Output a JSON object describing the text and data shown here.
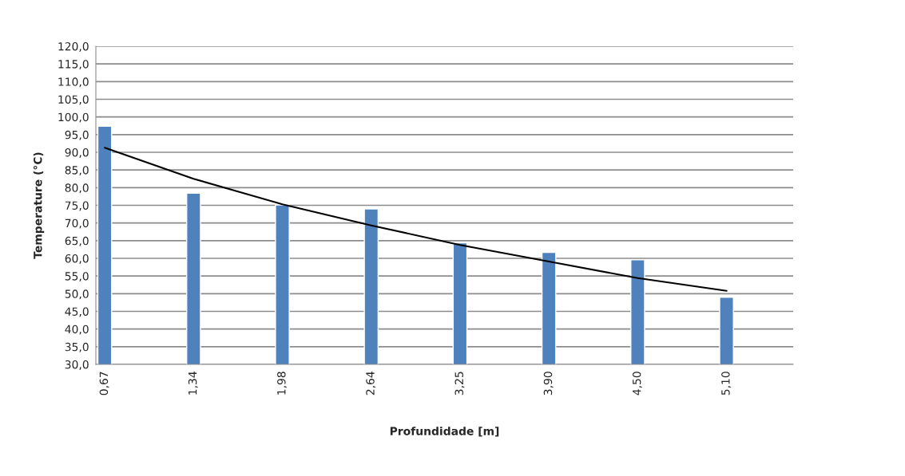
{
  "chart_data": {
    "type": "bar",
    "xlabel": "Profundidade [m]",
    "ylabel": "Temperature (°C)",
    "categories": [
      "0,67",
      "1,34",
      "1,98",
      "2,64",
      "3,25",
      "3,90",
      "4,50",
      "5,10"
    ],
    "series": [
      {
        "color": "#4f81bd",
        "values": [
          97.4,
          78.4,
          75.1,
          74.0,
          64.4,
          61.7,
          59.6,
          49.0
        ]
      },
      {
        "type": "line",
        "color": "#000000",
        "values": [
          91.3,
          82.5,
          75.3,
          69.3,
          63.8,
          59.1,
          54.4,
          50.8
        ]
      }
    ],
    "ylim": [
      30,
      120
    ],
    "yticks": [
      {
        "value": 30,
        "label": "30,0"
      },
      {
        "value": 35,
        "label": "35,0"
      },
      {
        "value": 40,
        "label": "40,0"
      },
      {
        "value": 45,
        "label": "45,0"
      },
      {
        "value": 50,
        "label": "50,0"
      },
      {
        "value": 55,
        "label": "55,0"
      },
      {
        "value": 60,
        "label": "60,0"
      },
      {
        "value": 65,
        "label": "65,0"
      },
      {
        "value": 70,
        "label": "70,0"
      },
      {
        "value": 75,
        "label": "75,0"
      },
      {
        "value": 80,
        "label": "80,0"
      },
      {
        "value": 85,
        "label": "85,0"
      },
      {
        "value": 90,
        "label": "90,0"
      },
      {
        "value": 95,
        "label": "95,0"
      },
      {
        "value": 100,
        "label": "100,0"
      },
      {
        "value": 105,
        "label": "105,0"
      },
      {
        "value": 110,
        "label": "110,0"
      },
      {
        "value": 115,
        "label": "115,0"
      },
      {
        "value": 120,
        "label": "120,0"
      }
    ],
    "grid": "y",
    "legend": false
  }
}
